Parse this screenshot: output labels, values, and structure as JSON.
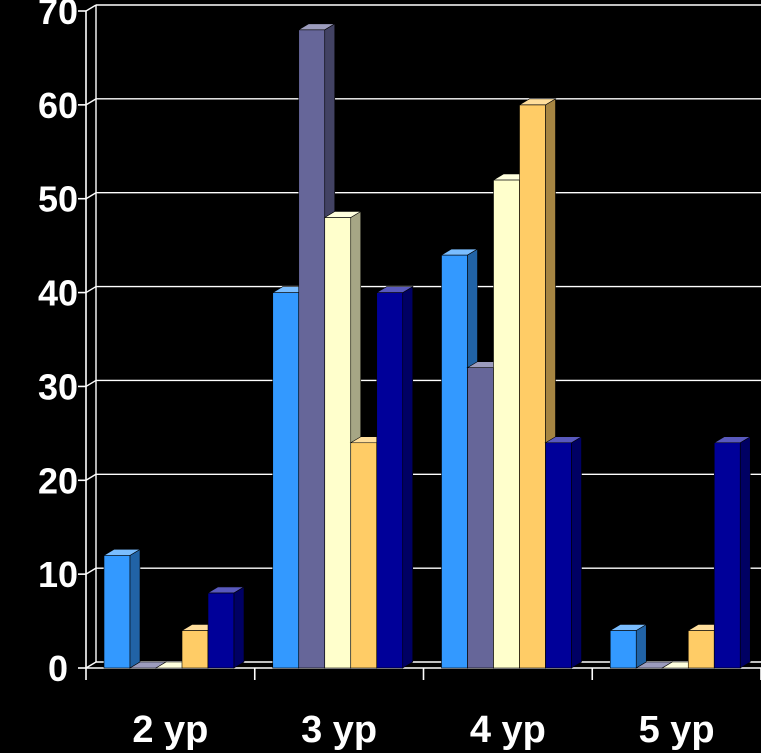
{
  "chart_data": {
    "type": "bar",
    "title": "",
    "xlabel": "",
    "ylabel": "",
    "ylim": [
      0,
      70
    ],
    "yticks": [
      0,
      10,
      20,
      30,
      40,
      50,
      60,
      70
    ],
    "grid": true,
    "style": "3d-clustered",
    "categories": [
      "2 yp",
      "3 yp",
      "4 yp",
      "5 yp"
    ],
    "series": [
      {
        "color": "#3399ff",
        "values": [
          12,
          40,
          44,
          4
        ]
      },
      {
        "color": "#666699",
        "values": [
          0,
          68,
          32,
          0
        ]
      },
      {
        "color": "#ffffcc",
        "values": [
          0,
          48,
          52,
          0
        ]
      },
      {
        "color": "#ffcc66",
        "values": [
          4,
          24,
          60,
          4
        ]
      },
      {
        "color": "#000099",
        "values": [
          8,
          40,
          24,
          24
        ]
      }
    ]
  },
  "colors": {
    "background": "#000000",
    "axis": "#ffffff",
    "gridline": "#ffffff",
    "text": "#ffffff"
  }
}
